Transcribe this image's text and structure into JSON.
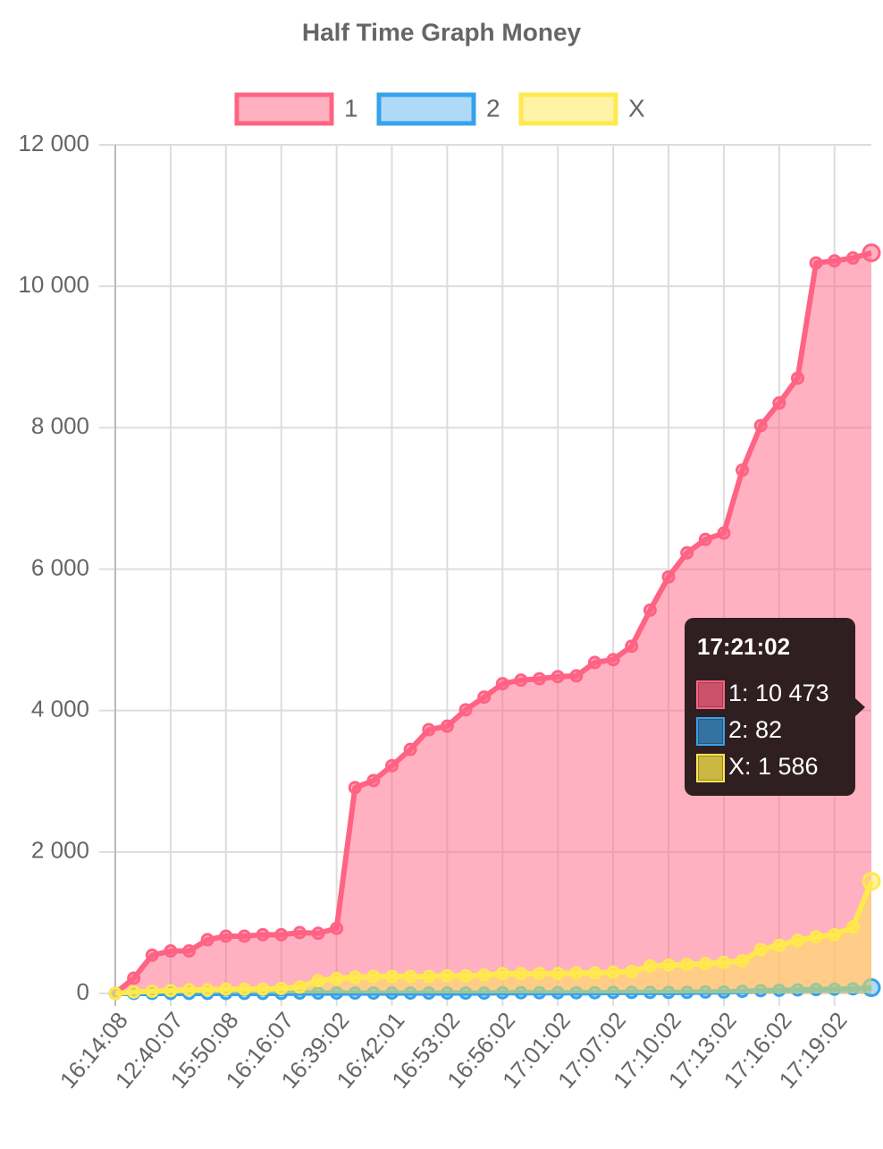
{
  "chart_data": {
    "type": "line",
    "title": "Half Time Graph Money",
    "categories": [
      "16:14:08",
      null,
      null,
      "12:40:07",
      null,
      null,
      "15:50:08",
      null,
      null,
      "16:16:07",
      null,
      null,
      "16:39:02",
      null,
      null,
      "16:42:01",
      null,
      null,
      "16:53:02",
      null,
      null,
      "16:56:02",
      null,
      null,
      "17:01:02",
      null,
      null,
      "17:07:02",
      null,
      null,
      "17:10:02",
      null,
      null,
      "17:13:02",
      null,
      null,
      "17:16:02",
      null,
      null,
      "17:19:02",
      null,
      null
    ],
    "series": [
      {
        "name": "1",
        "color": "#ff6384",
        "fill": "rgba(255,99,132,0.5)",
        "values": [
          0,
          215,
          540,
          600,
          600,
          760,
          810,
          810,
          830,
          830,
          860,
          850,
          920,
          2910,
          3010,
          3220,
          3450,
          3730,
          3780,
          4010,
          4190,
          4380,
          4430,
          4450,
          4480,
          4490,
          4680,
          4720,
          4910,
          5420,
          5890,
          6230,
          6420,
          6510,
          7400,
          8030,
          8350,
          8700,
          10330,
          10360,
          10400,
          10473
        ]
      },
      {
        "name": "2",
        "color": "#36a2eb",
        "fill": "rgba(54,162,235,0.4)",
        "values": [
          0,
          0,
          0,
          0,
          0,
          0,
          0,
          0,
          0,
          0,
          5,
          5,
          5,
          5,
          5,
          5,
          5,
          5,
          5,
          5,
          5,
          10,
          10,
          10,
          10,
          10,
          10,
          15,
          15,
          15,
          15,
          15,
          20,
          20,
          30,
          40,
          45,
          50,
          55,
          60,
          65,
          82
        ]
      },
      {
        "name": "X",
        "color": "#ffe94d",
        "fill": "rgba(255,233,77,0.5)",
        "values": [
          0,
          20,
          30,
          40,
          50,
          50,
          60,
          60,
          60,
          70,
          90,
          180,
          210,
          230,
          240,
          240,
          240,
          240,
          250,
          250,
          260,
          280,
          280,
          280,
          280,
          290,
          290,
          300,
          310,
          390,
          400,
          410,
          420,
          440,
          460,
          620,
          680,
          750,
          800,
          830,
          940,
          1586
        ]
      }
    ],
    "ylim": [
      0,
      12000
    ],
    "yticks": [
      0,
      {
        "value": 2000,
        "label": "2 000"
      },
      {
        "value": 4000,
        "label": "4 000"
      },
      {
        "value": 6000,
        "label": "6 000"
      },
      {
        "value": 8000,
        "label": "8 000"
      },
      {
        "value": 10000,
        "label": "10 000"
      },
      {
        "value": 12000,
        "label": "12 000"
      }
    ],
    "grid": true,
    "legend": "top",
    "tooltip": {
      "title": "17:21:02",
      "lines": [
        "1: 10 473",
        "2: 82",
        "X: 1 586"
      ]
    }
  }
}
